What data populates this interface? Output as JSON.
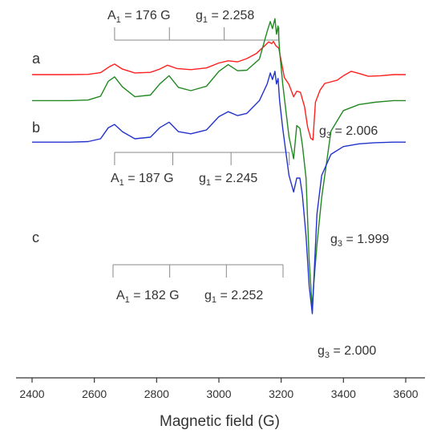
{
  "chart_data": {
    "type": "line",
    "xlabel": "Magnetic field (G)",
    "ylabel": "",
    "xlim": [
      2400,
      3600
    ],
    "xticks": [
      2400,
      2600,
      2800,
      3000,
      3200,
      3400,
      3600
    ],
    "grid": false,
    "legend": "none",
    "series": [
      {
        "label": "a",
        "color": "#ff1f1f",
        "offset": 0,
        "x": [
          2400,
          2460,
          2520,
          2580,
          2620,
          2650,
          2665,
          2690,
          2730,
          2780,
          2810,
          2835,
          2865,
          2910,
          2960,
          3000,
          3030,
          3060,
          3090,
          3120,
          3145,
          3160,
          3170,
          3175,
          3183,
          3192,
          3200,
          3210,
          3225,
          3240,
          3250,
          3262,
          3275,
          3285,
          3295,
          3302,
          3310,
          3325,
          3340,
          3360,
          3380,
          3400,
          3425,
          3450,
          3480,
          3520,
          3560,
          3600
        ],
        "y": [
          0.0,
          0.0,
          0.0,
          0.05,
          0.35,
          1.5,
          1.9,
          1.0,
          0.3,
          0.4,
          1.0,
          1.7,
          1.1,
          0.9,
          1.2,
          2.1,
          2.5,
          2.3,
          2.9,
          3.8,
          5.1,
          5.9,
          5.6,
          6.0,
          5.2,
          4.8,
          2.5,
          -0.5,
          -1.8,
          -4.0,
          -3.0,
          -3.2,
          -5.8,
          -9.5,
          -11.5,
          -11.8,
          -5.0,
          -2.8,
          -1.6,
          -1.3,
          -1.0,
          -0.2,
          0.6,
          0.2,
          -0.3,
          -0.2,
          0.0,
          0.0
        ]
      },
      {
        "label": "b",
        "color": "#228822",
        "offset": -4.7,
        "x": [
          2400,
          2460,
          2520,
          2580,
          2620,
          2645,
          2665,
          2690,
          2730,
          2780,
          2810,
          2840,
          2870,
          2910,
          2960,
          3000,
          3030,
          3060,
          3090,
          3130,
          3155,
          3165,
          3172,
          3180,
          3185,
          3190,
          3195,
          3205,
          3225,
          3240,
          3250,
          3260,
          3268,
          3280,
          3290,
          3300,
          3305,
          3315,
          3330,
          3360,
          3400,
          3450,
          3500,
          3560,
          3600
        ],
        "y": [
          0.0,
          0.0,
          0.0,
          0.1,
          0.8,
          3.5,
          4.3,
          2.5,
          0.7,
          1.0,
          3.0,
          4.5,
          2.4,
          1.8,
          2.6,
          5.3,
          6.5,
          5.4,
          5.5,
          7.5,
          12.5,
          14.3,
          13.0,
          14.8,
          12.0,
          13.5,
          9.0,
          3.0,
          -6.5,
          -10.5,
          -4.5,
          -5.0,
          -8.0,
          -14.0,
          -29.0,
          -37.5,
          -33.0,
          -26.0,
          -17.5,
          -5.5,
          -1.8,
          -0.7,
          -0.3,
          0.0,
          0.0
        ]
      },
      {
        "label": "c",
        "color": "#2233cc",
        "offset": -12.2,
        "x": [
          2400,
          2460,
          2520,
          2580,
          2620,
          2645,
          2665,
          2690,
          2730,
          2780,
          2810,
          2840,
          2870,
          2910,
          2960,
          3000,
          3030,
          3060,
          3090,
          3130,
          3155,
          3165,
          3172,
          3180,
          3185,
          3190,
          3195,
          3205,
          3225,
          3240,
          3250,
          3260,
          3268,
          3280,
          3290,
          3300,
          3305,
          3315,
          3330,
          3360,
          3400,
          3450,
          3500,
          3560,
          3600
        ],
        "y": [
          0.0,
          0.0,
          0.0,
          0.1,
          0.6,
          2.6,
          3.2,
          1.9,
          0.6,
          0.9,
          2.6,
          3.6,
          1.9,
          1.5,
          2.2,
          4.6,
          5.5,
          4.8,
          5.2,
          7.5,
          10.5,
          12.5,
          11.3,
          12.8,
          10.5,
          11.5,
          7.5,
          2.5,
          -6.0,
          -9.0,
          -6.5,
          -6.5,
          -9.5,
          -17.0,
          -26.0,
          -31.0,
          -25.0,
          -13.0,
          -6.0,
          -2.2,
          -0.8,
          -0.3,
          -0.1,
          0.0,
          0.0
        ]
      }
    ],
    "annotations": [
      {
        "A_main": "A",
        "A_sub": "1",
        "A_value": " = 176 G",
        "g1_main": "g",
        "g1_sub": "1",
        "g1_value": " = 2.258",
        "g3_main": "g",
        "g3_sub": "3",
        "g3_value": " = 2.006"
      },
      {
        "A_main": "A",
        "A_sub": "1",
        "A_value": " = 187 G",
        "g1_main": "g",
        "g1_sub": "1",
        "g1_value": " = 2.245",
        "g3_main": "g",
        "g3_sub": "3",
        "g3_value": " = 1.999"
      },
      {
        "A_main": "A",
        "A_sub": "1",
        "A_value": " = 182 G",
        "g1_main": "g",
        "g1_sub": "1",
        "g1_value": " = 2.252",
        "g3_main": "g",
        "g3_sub": "3",
        "g3_value": " = 2.000"
      }
    ],
    "hyperfine_markers": [
      {
        "x": [
          2665,
          2841,
          3017,
          3193
        ],
        "direction": "up"
      },
      {
        "x": [
          2665,
          2852,
          3039,
          3226
        ],
        "direction": "down"
      },
      {
        "x": [
          2660,
          2842,
          3024,
          3206
        ],
        "direction": "down"
      }
    ]
  }
}
